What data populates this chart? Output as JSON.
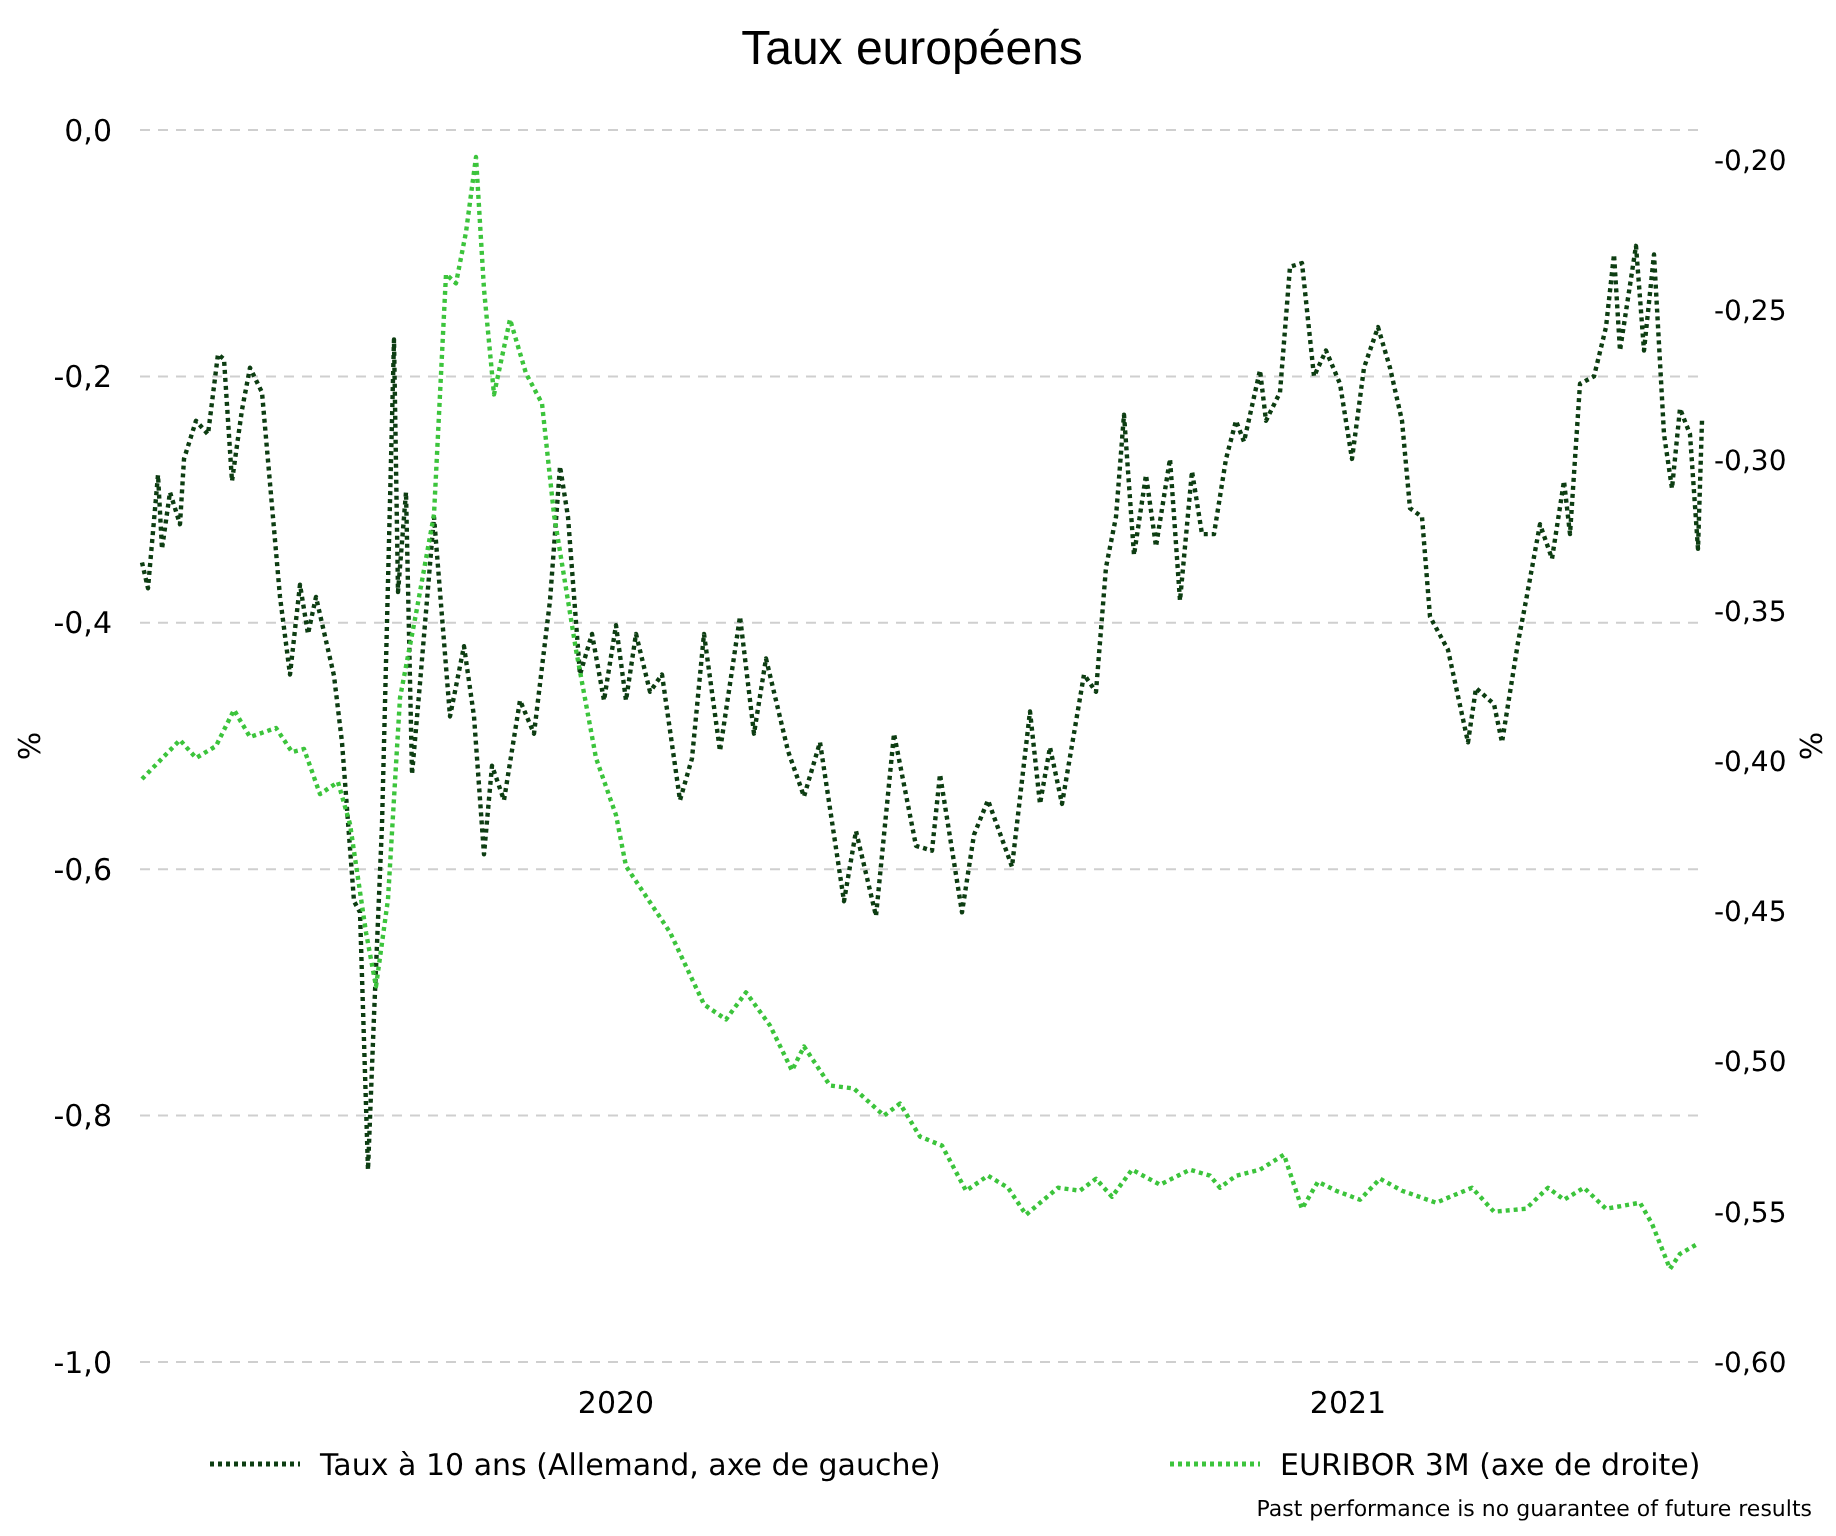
{
  "chart_data": {
    "type": "line",
    "title": "Taux européens",
    "ylabel": "%",
    "y2label": "%",
    "xlim": [
      "2019-05-08",
      "2021-06-27"
    ],
    "xticks": [
      "2020",
      "2021"
    ],
    "ylim": [
      -1.0,
      0.0
    ],
    "yticks": [
      {
        "value": 0,
        "label": "0,0"
      },
      {
        "value": -0.2,
        "label": "-0,2"
      },
      {
        "value": -0.4,
        "label": "-0,4"
      },
      {
        "value": -0.6,
        "label": "-0,6"
      },
      {
        "value": -0.8,
        "label": "-0,8"
      },
      {
        "value": -1.0,
        "label": "-1,0"
      }
    ],
    "y2lim": [
      -0.6,
      -0.19
    ],
    "y2ticks": [
      {
        "value": -0.2,
        "label": "-0,20"
      },
      {
        "value": -0.25,
        "label": "-0,25"
      },
      {
        "value": -0.3,
        "label": "-0,30"
      },
      {
        "value": -0.35,
        "label": "-0,35"
      },
      {
        "value": -0.4,
        "label": "-0,40"
      },
      {
        "value": -0.45,
        "label": "-0,45"
      },
      {
        "value": -0.5,
        "label": "-0,50"
      },
      {
        "value": -0.55,
        "label": "-0,55"
      },
      {
        "value": -0.6,
        "label": "-0,60"
      }
    ],
    "grid": "y",
    "legend": "bottom",
    "line_style": "dotted",
    "marker": "none",
    "annotations": [
      "Past performance is no guarantee of future results"
    ],
    "series": [
      {
        "name": "Taux à 10 ans (Allemand, axe de gauche)",
        "color": "#0d3d12",
        "x": [
          "2019-05-09",
          "2019-05-12",
          "2019-05-17",
          "2019-05-19",
          "2019-05-23",
          "2019-05-28",
          "2019-05-30",
          "2019-06-05",
          "2019-06-11",
          "2019-06-16",
          "2019-06-19",
          "2019-06-23",
          "2019-06-28",
          "2019-07-02",
          "2019-07-08",
          "2019-07-17",
          "2019-07-22",
          "2019-07-27",
          "2019-07-31",
          "2019-08-04",
          "2019-08-13",
          "2019-08-17",
          "2019-08-23",
          "2019-08-26",
          "2019-08-30",
          "2019-09-02",
          "2019-09-06",
          "2019-09-12",
          "2019-09-14",
          "2019-09-18",
          "2019-09-21",
          "2019-09-25",
          "2019-10-02",
          "2019-10-10",
          "2019-10-17",
          "2019-10-22",
          "2019-10-27",
          "2019-10-31",
          "2019-11-06",
          "2019-11-14",
          "2019-11-21",
          "2019-11-29",
          "2019-12-04",
          "2019-12-08",
          "2019-12-14",
          "2019-12-20",
          "2019-12-26",
          "2020-01-01",
          "2020-01-06",
          "2020-01-11",
          "2020-01-18",
          "2020-01-24",
          "2020-02-02",
          "2020-02-08",
          "2020-02-14",
          "2020-02-22",
          "2020-03-03",
          "2020-03-10",
          "2020-03-16",
          "2020-03-27",
          "2020-04-04",
          "2020-04-12",
          "2020-04-24",
          "2020-04-30",
          "2020-05-10",
          "2020-05-19",
          "2020-05-30",
          "2020-06-07",
          "2020-06-11",
          "2020-06-22",
          "2020-06-28",
          "2020-07-05",
          "2020-07-17",
          "2020-07-26",
          "2020-07-31",
          "2020-08-05",
          "2020-08-11",
          "2020-08-22",
          "2020-08-28",
          "2020-09-02",
          "2020-09-07",
          "2020-09-11",
          "2020-09-16",
          "2020-09-22",
          "2020-09-27",
          "2020-10-04",
          "2020-10-09",
          "2020-10-15",
          "2020-10-20",
          "2020-10-26",
          "2020-11-01",
          "2020-11-06",
          "2020-11-10",
          "2020-11-18",
          "2020-11-21",
          "2020-11-28",
          "2020-12-03",
          "2020-12-09",
          "2020-12-15",
          "2020-12-21",
          "2020-12-28",
          "2021-01-03",
          "2021-01-09",
          "2021-01-16",
          "2021-01-22",
          "2021-01-28",
          "2021-02-01",
          "2021-02-07",
          "2021-02-11",
          "2021-02-20",
          "2021-03-02",
          "2021-03-06",
          "2021-03-15",
          "2021-03-19",
          "2021-03-27",
          "2021-03-31",
          "2021-04-07",
          "2021-04-13",
          "2021-04-19",
          "2021-04-22",
          "2021-04-27",
          "2021-05-04",
          "2021-05-10",
          "2021-05-14",
          "2021-05-17",
          "2021-05-25",
          "2021-05-29",
          "2021-06-03",
          "2021-06-08",
          "2021-06-12",
          "2021-06-16",
          "2021-06-21",
          "2021-06-25",
          "2021-06-27"
        ],
        "values": [
          -0.351,
          -0.372,
          -0.28,
          -0.34,
          -0.294,
          -0.32,
          -0.267,
          -0.236,
          -0.247,
          -0.182,
          -0.186,
          -0.285,
          -0.227,
          -0.193,
          -0.213,
          -0.379,
          -0.442,
          -0.369,
          -0.409,
          -0.379,
          -0.443,
          -0.497,
          -0.626,
          -0.635,
          -0.844,
          -0.719,
          -0.564,
          -0.17,
          -0.375,
          -0.294,
          -0.523,
          -0.449,
          -0.314,
          -0.476,
          -0.419,
          -0.476,
          -0.588,
          -0.516,
          -0.544,
          -0.463,
          -0.49,
          -0.382,
          -0.273,
          -0.314,
          -0.442,
          -0.409,
          -0.463,
          -0.402,
          -0.463,
          -0.409,
          -0.456,
          -0.442,
          -0.544,
          -0.51,
          -0.409,
          -0.504,
          -0.395,
          -0.49,
          -0.429,
          -0.504,
          -0.541,
          -0.497,
          -0.626,
          -0.569,
          -0.638,
          -0.49,
          -0.581,
          -0.585,
          -0.523,
          -0.635,
          -0.572,
          -0.544,
          -0.598,
          -0.472,
          -0.547,
          -0.501,
          -0.547,
          -0.442,
          -0.456,
          -0.355,
          -0.314,
          -0.231,
          -0.345,
          -0.28,
          -0.338,
          -0.267,
          -0.382,
          -0.277,
          -0.328,
          -0.328,
          -0.267,
          -0.236,
          -0.253,
          -0.195,
          -0.236,
          -0.213,
          -0.111,
          -0.108,
          -0.2,
          -0.179,
          -0.206,
          -0.267,
          -0.193,
          -0.16,
          -0.193,
          -0.236,
          -0.307,
          -0.314,
          -0.395,
          -0.422,
          -0.497,
          -0.453,
          -0.466,
          -0.497,
          -0.416,
          -0.382,
          -0.32,
          -0.348,
          -0.285,
          -0.328,
          -0.206,
          -0.2,
          -0.16,
          -0.101,
          -0.179,
          -0.094,
          -0.179,
          -0.101,
          -0.247,
          -0.291,
          -0.226,
          -0.247,
          -0.34,
          -0.236
        ]
      },
      {
        "name": "EURIBOR 3M (axe de droite)",
        "color": "#3cc43c",
        "axis": "y2",
        "x": [
          "2019-05-09",
          "2019-05-28",
          "2019-06-05",
          "2019-06-15",
          "2019-06-24",
          "2019-07-02",
          "2019-07-15",
          "2019-07-23",
          "2019-07-29",
          "2019-08-06",
          "2019-08-15",
          "2019-08-21",
          "2019-08-29",
          "2019-09-03",
          "2019-09-09",
          "2019-09-15",
          "2019-09-23",
          "2019-10-02",
          "2019-10-08",
          "2019-10-13",
          "2019-10-18",
          "2019-10-23",
          "2019-10-27",
          "2019-11-01",
          "2019-11-09",
          "2019-11-17",
          "2019-11-25",
          "2019-12-01",
          "2019-12-12",
          "2019-12-22",
          "2020-01-01",
          "2020-01-06",
          "2020-01-16",
          "2020-01-28",
          "2020-02-14",
          "2020-02-25",
          "2020-03-06",
          "2020-03-18",
          "2020-03-29",
          "2020-04-04",
          "2020-04-17",
          "2020-04-29",
          "2020-05-14",
          "2020-05-22",
          "2020-06-01",
          "2020-06-12",
          "2020-06-24",
          "2020-07-05",
          "2020-07-15",
          "2020-07-24",
          "2020-08-09",
          "2020-08-20",
          "2020-08-28",
          "2020-09-05",
          "2020-09-15",
          "2020-09-29",
          "2020-10-14",
          "2020-10-24",
          "2020-10-29",
          "2020-11-06",
          "2020-11-18",
          "2020-11-30",
          "2020-12-09",
          "2020-12-17",
          "2020-12-26",
          "2021-01-07",
          "2021-01-17",
          "2021-01-28",
          "2021-02-14",
          "2021-03-04",
          "2021-03-15",
          "2021-03-31",
          "2021-04-11",
          "2021-04-19",
          "2021-04-29",
          "2021-05-10",
          "2021-05-27",
          "2021-06-02",
          "2021-06-11",
          "2021-06-16",
          "2021-06-24"
        ],
        "values": [
          -0.406,
          -0.393,
          -0.399,
          -0.395,
          -0.383,
          -0.392,
          -0.389,
          -0.397,
          -0.396,
          -0.411,
          -0.407,
          -0.421,
          -0.457,
          -0.475,
          -0.446,
          -0.379,
          -0.351,
          -0.318,
          -0.238,
          -0.241,
          -0.224,
          -0.199,
          -0.243,
          -0.278,
          -0.253,
          -0.271,
          -0.281,
          -0.318,
          -0.363,
          -0.399,
          -0.418,
          -0.435,
          -0.445,
          -0.457,
          -0.481,
          -0.486,
          -0.477,
          -0.488,
          -0.503,
          -0.495,
          -0.508,
          -0.509,
          -0.518,
          -0.514,
          -0.525,
          -0.528,
          -0.543,
          -0.538,
          -0.542,
          -0.551,
          -0.542,
          -0.543,
          -0.539,
          -0.545,
          -0.536,
          -0.541,
          -0.536,
          -0.538,
          -0.542,
          -0.538,
          -0.536,
          -0.531,
          -0.549,
          -0.54,
          -0.543,
          -0.546,
          -0.539,
          -0.543,
          -0.547,
          -0.542,
          -0.55,
          -0.549,
          -0.542,
          -0.546,
          -0.542,
          -0.549,
          -0.547,
          -0.554,
          -0.569,
          -0.564,
          -0.561
        ]
      }
    ]
  }
}
